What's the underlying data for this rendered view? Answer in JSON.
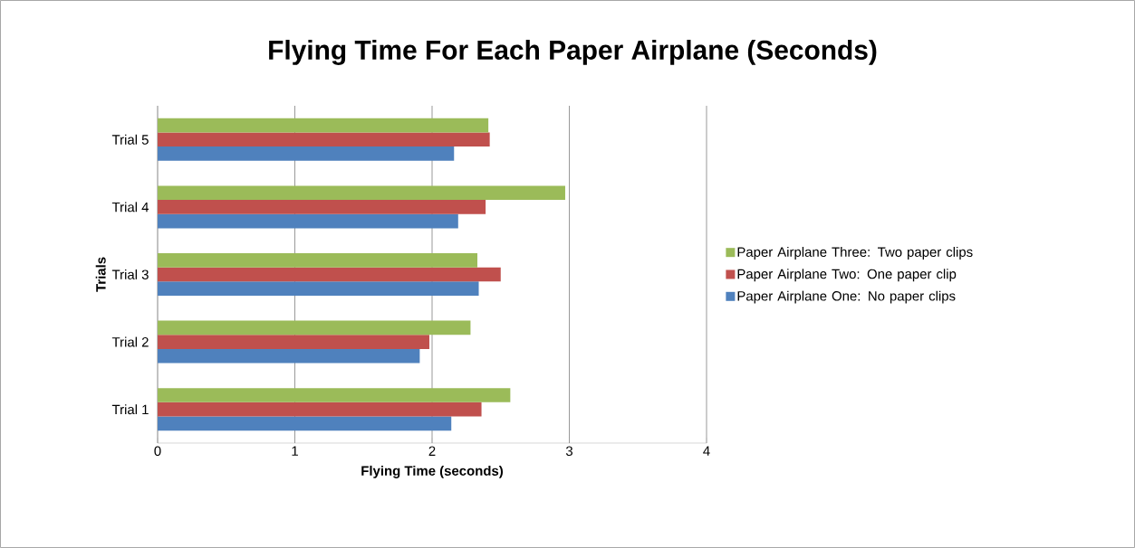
{
  "chart_data": {
    "type": "bar",
    "orientation": "horizontal",
    "title": "Flying Time For Each Paper Airplane (Seconds)",
    "xlabel": "Flying Time (seconds)",
    "ylabel": "Trials",
    "categories": [
      "Trial 5",
      "Trial 4",
      "Trial 3",
      "Trial 2",
      "Trial 1"
    ],
    "series": [
      {
        "name": "Paper Airplane One: No paper clips",
        "color": "#4f81bd",
        "values": [
          2.16,
          2.19,
          2.34,
          1.91,
          2.14
        ]
      },
      {
        "name": "Paper Airplane Two: One paper clip",
        "color": "#c0504d",
        "values": [
          2.42,
          2.39,
          2.5,
          1.98,
          2.36
        ]
      },
      {
        "name": "Paper Airplane Three: Two paper clips",
        "color": "#9bbb59",
        "values": [
          2.41,
          2.97,
          2.33,
          2.28,
          2.57
        ]
      }
    ],
    "xlim": [
      0,
      4
    ],
    "xticks": [
      0,
      1,
      2,
      3,
      4
    ],
    "grid": "x",
    "legend": "right"
  }
}
